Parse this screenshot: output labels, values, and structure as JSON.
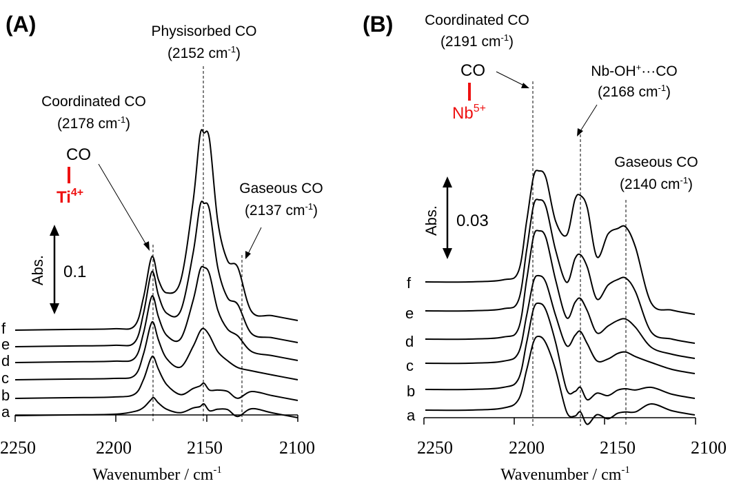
{
  "chart_data": [
    {
      "type": "line",
      "panel": "(A)",
      "xlabel": "Wavenumber / cm",
      "xlabel_sup": "-1",
      "xlim": [
        2250,
        2100
      ],
      "xticks": [
        2250,
        2200,
        2150,
        2100
      ],
      "x_reversed": true,
      "scale_bar": {
        "label": "Abs.",
        "value": "0.1"
      },
      "series_labels": [
        "a",
        "b",
        "c",
        "d",
        "e",
        "f"
      ],
      "guide_lines": [
        2178,
        2152,
        2137
      ],
      "annotations": [
        {
          "text": "Physisorbed CO",
          "sub": "(2152 cm",
          "sup": "-1",
          "close": ")"
        },
        {
          "text": "Coordinated CO",
          "sub": "(2178 cm",
          "sup": "-1",
          "close": ")"
        },
        {
          "text": "Gaseous CO",
          "sub": "(2137 cm",
          "sup": "-1",
          "close": ")"
        }
      ],
      "structure": {
        "top": "CO",
        "metal": "Ti",
        "charge": "4+"
      }
    },
    {
      "type": "line",
      "panel": "(B)",
      "xlabel": "Wavenumber / cm",
      "xlabel_sup": "-1",
      "xlim": [
        2250,
        2100
      ],
      "xticks": [
        2250,
        2200,
        2150,
        2100
      ],
      "x_reversed": true,
      "scale_bar": {
        "label": "Abs.",
        "value": "0.03"
      },
      "series_labels": [
        "a",
        "b",
        "c",
        "d",
        "e",
        "f"
      ],
      "guide_lines": [
        2191,
        2168,
        2140
      ],
      "annotations": [
        {
          "text": "Coordinated CO",
          "sub": "(2191 cm",
          "sup": "-1",
          "close": ")"
        },
        {
          "text": "Nb-OH",
          "sup": "+",
          "text2": "···CO",
          "sub": "(2168 cm",
          "sup2": "-1",
          "close": ")"
        },
        {
          "text": "Gaseous CO",
          "sub": "(2140 cm",
          "sup": "-1",
          "close": ")"
        }
      ],
      "structure": {
        "top": "CO",
        "metal": "Nb",
        "charge": "5+"
      }
    }
  ]
}
